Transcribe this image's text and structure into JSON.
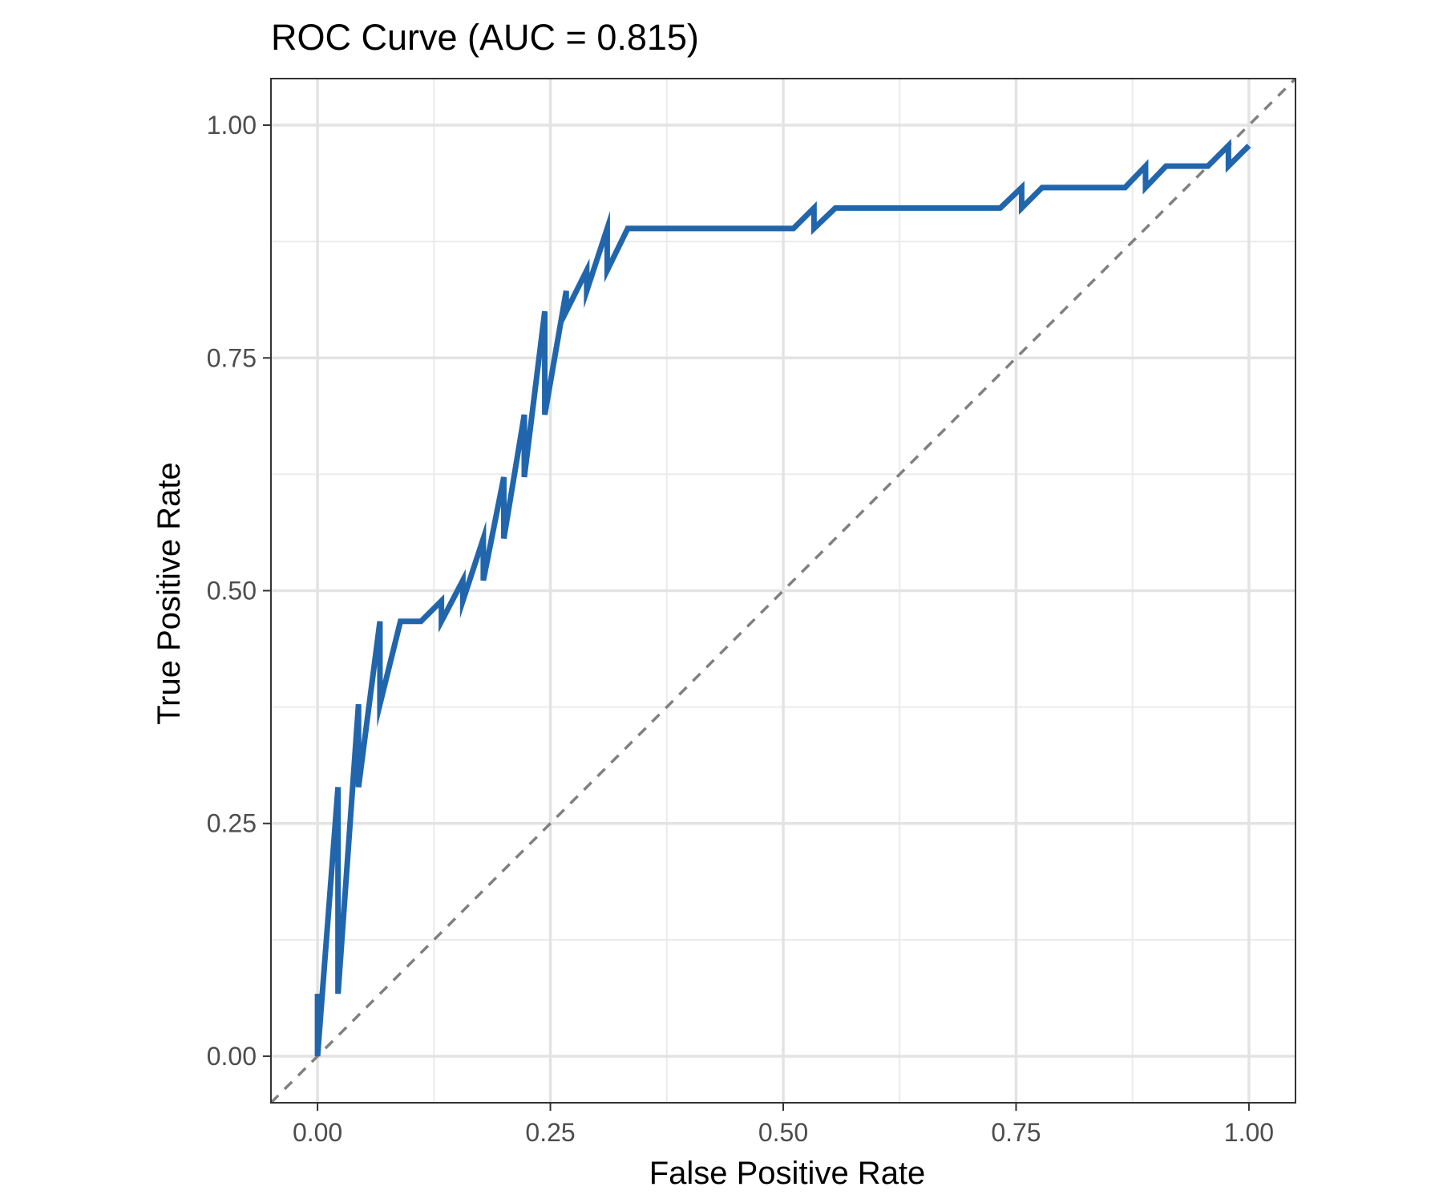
{
  "chart_data": {
    "type": "line",
    "title": "ROC Curve (AUC = 0.815)",
    "xlabel": "False Positive Rate",
    "ylabel": "True Positive Rate",
    "xlim": [
      -0.05,
      1.05
    ],
    "ylim": [
      -0.05,
      1.05
    ],
    "x_ticks": [
      0,
      0.25,
      0.5,
      0.75,
      1
    ],
    "y_ticks": [
      0,
      0.25,
      0.5,
      0.75,
      1
    ],
    "x_tick_labels": [
      "0.00",
      "0.25",
      "0.50",
      "0.75",
      "1.00"
    ],
    "y_tick_labels": [
      "0.00",
      "0.25",
      "0.50",
      "0.75",
      "1.00"
    ],
    "grid": true,
    "series": [
      {
        "color": "#2166ac",
        "x": [
          0,
          0,
          0.022,
          0.022,
          0.044,
          0.044,
          0.067,
          0.067,
          0.089,
          0.111,
          0.133,
          0.133,
          0.156,
          0.156,
          0.178,
          0.178,
          0.2,
          0.2,
          0.222,
          0.222,
          0.244,
          0.244,
          0.267,
          0.267,
          0.289,
          0.289,
          0.311,
          0.311,
          0.333,
          0.511,
          0.533,
          0.533,
          0.556,
          0.733,
          0.756,
          0.756,
          0.778,
          0.867,
          0.889,
          0.889,
          0.911,
          0.956,
          0.978,
          0.978,
          1.0
        ],
        "y": [
          0.067,
          0,
          0.289,
          0.067,
          0.378,
          0.289,
          0.467,
          0.378,
          0.467,
          0.467,
          0.489,
          0.467,
          0.511,
          0.489,
          0.556,
          0.511,
          0.622,
          0.556,
          0.689,
          0.622,
          0.8,
          0.689,
          0.822,
          0.8,
          0.844,
          0.822,
          0.889,
          0.844,
          0.889,
          0.889,
          0.911,
          0.889,
          0.911,
          0.911,
          0.933,
          0.911,
          0.933,
          0.933,
          0.956,
          0.933,
          0.956,
          0.956,
          0.978,
          0.956,
          0.978
        ]
      }
    ],
    "reference_line": {
      "color": "#808080",
      "x": [
        -0.05,
        1.05
      ],
      "y": [
        -0.05,
        1.05
      ]
    }
  }
}
